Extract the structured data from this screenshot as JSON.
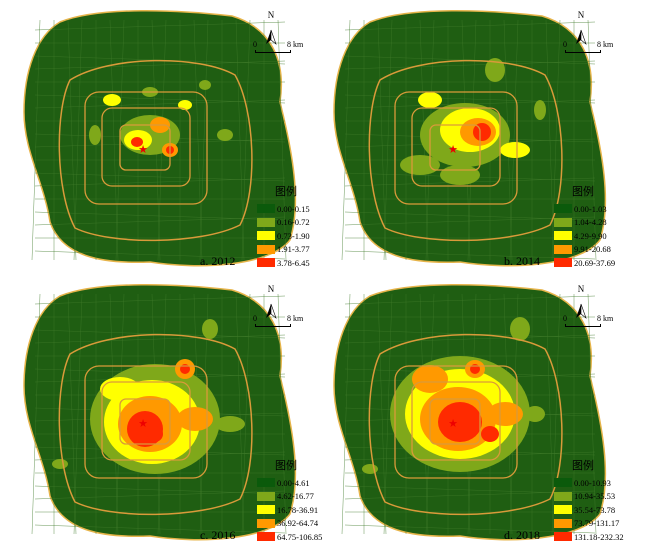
{
  "figure": {
    "legend_title": "图例",
    "north_label": "N",
    "scale": {
      "start": "0",
      "end": "8",
      "unit": "km"
    },
    "class_colors": [
      "#0b5a0b",
      "#7fa81a",
      "#ffff00",
      "#ff9900",
      "#ff2a00"
    ],
    "background_color": "#1f5e12",
    "road_color": "#d99a3a",
    "panels": [
      {
        "caption": "a. 2012",
        "legend": [
          "0.00-0.15",
          "0.16-0.72",
          "0.73-1.90",
          "1.91-3.77",
          "3.78-6.45"
        ]
      },
      {
        "caption": "b. 2014",
        "legend": [
          "0.00-1.03",
          "1.04-4.28",
          "4.29-9.90",
          "9.91-20.68",
          "20.69-37.69"
        ]
      },
      {
        "caption": "c. 2016",
        "legend": [
          "0.00-4.61",
          "4.62-16.77",
          "16.78-36.91",
          "36.92-64.74",
          "64.75-106.85"
        ]
      },
      {
        "caption": "d. 2018",
        "legend": [
          "0.00-10.93",
          "10.94-35.53",
          "35.54-73.78",
          "73.79-131.17",
          "131.18-232.32"
        ]
      }
    ]
  }
}
